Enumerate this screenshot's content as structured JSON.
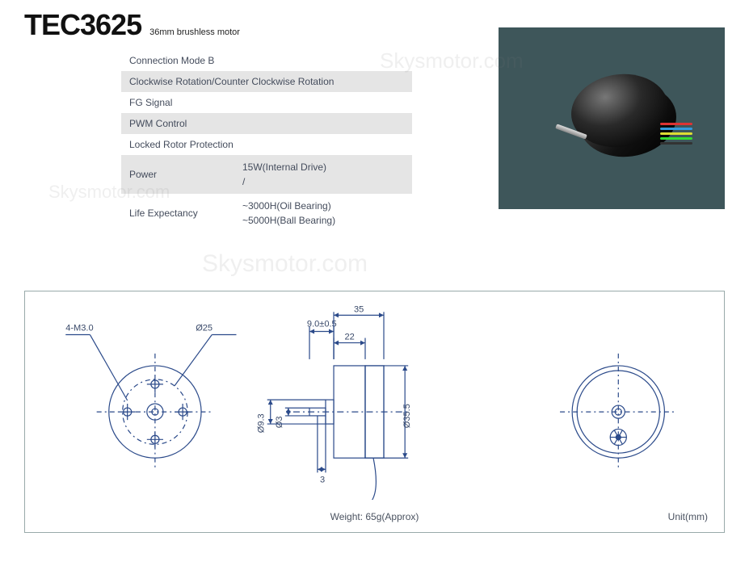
{
  "header": {
    "model": "TEC3625",
    "subtitle": "36mm brushless motor"
  },
  "specs": {
    "rows": [
      {
        "label": "Connection Mode B",
        "shade": false
      },
      {
        "label": "Clockwise Rotation/Counter Clockwise Rotation",
        "shade": true
      },
      {
        "label": "FG Signal",
        "shade": false
      },
      {
        "label": "PWM Control",
        "shade": true
      },
      {
        "label": "Locked Rotor Protection",
        "shade": false
      }
    ],
    "power": {
      "label": "Power",
      "line1": "15W(Internal Drive)",
      "line2": "/"
    },
    "life": {
      "label": "Life Expectancy",
      "line1": "~3000H(Oil Bearing)",
      "line2": "~5000H(Ball Bearing)"
    }
  },
  "photo": {
    "bg_color": "#3e565a",
    "wire_colors": [
      "#d33030",
      "#3090d0",
      "#d0d030",
      "#30c040",
      "#303030"
    ]
  },
  "watermark_text": "Skysmotor.com",
  "drawing": {
    "stroke": "#2b4a8a",
    "stroke_width": 1.2,
    "text_color": "#3a4a6a",
    "fontsize": 11,
    "front_view": {
      "label_holes": "4-M3.0",
      "label_pcd": "Ø25",
      "outer_dia": 35.5,
      "pcd_holes": 25,
      "n_holes": 4
    },
    "side_view": {
      "shaft_ext": "9.0±0.5",
      "total_len": "35",
      "body_len": "22",
      "shaft_dia": "Ø3",
      "boss_dia": "Ø9.3",
      "outer_dia": "Ø35.5",
      "flat_len": "3"
    },
    "rear_view": {
      "outer_dia": 35.5
    },
    "weight": "Weight: 65g(Approx)",
    "unit": "Unit(mm)"
  }
}
